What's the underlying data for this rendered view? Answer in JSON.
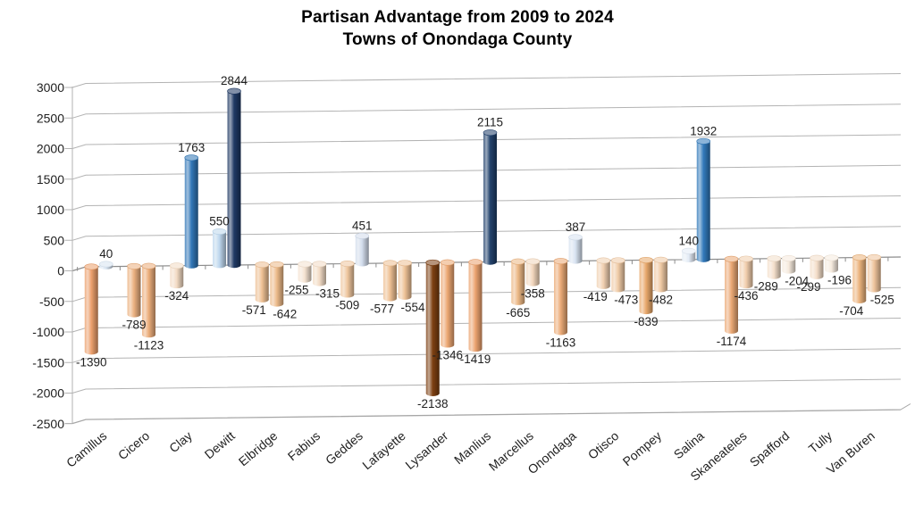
{
  "title": {
    "line1": "Partisan Advantage from 2009 to 2024",
    "line2": "Towns of Onondaga County"
  },
  "chart_data": {
    "type": "bar",
    "style": "3d-cylinder",
    "title": "Partisan Advantage from 2009 to 2024 — Towns of Onondaga County",
    "xlabel": "",
    "ylabel": "",
    "ylim": [
      -2500,
      3000
    ],
    "ytick_step": 500,
    "ytick_labels": [
      "3000",
      "2500",
      "2000",
      "1500",
      "1000",
      "500",
      "0",
      "-500",
      "-1000",
      "-1500",
      "-2000",
      "-2500"
    ],
    "grid": true,
    "legend": false,
    "data_labels": true,
    "categories": [
      "Camillus",
      "Cicero",
      "Clay",
      "Dewitt",
      "Elbridge",
      "Fabius",
      "Geddes",
      "Lafayette",
      "Lysander",
      "Manlius",
      "Marcellus",
      "Onondaga",
      "Otisco",
      "Pompey",
      "Salina",
      "Skaneateles",
      "Spafford",
      "Tully",
      "Van Buren"
    ],
    "series": [
      {
        "values": [
          -1390,
          -789,
          -324,
          550,
          -571,
          -255,
          -509,
          -577,
          -2138,
          -1419,
          -665,
          -1163,
          -419,
          -839,
          140,
          -1174,
          -289,
          -299,
          -704
        ],
        "colors": [
          "#EC9F6B",
          "#EBAF7E",
          "#F3DBC3",
          "#BDD7EE",
          "#EEBF92",
          "#F5E3D1",
          "#EFC69E",
          "#EEBF91",
          "#7C3E0F",
          "#ECA26E",
          "#ECB783",
          "#EBA974",
          "#F1D0B0",
          "#E9A869",
          "#E3EBF6",
          "#EBA873",
          "#F4DFCA",
          "#F4DEC8",
          "#EBB37C"
        ]
      },
      {
        "values": [
          40,
          -1123,
          1763,
          2844,
          -642,
          -315,
          451,
          -554,
          -1346,
          2115,
          -358,
          387,
          -473,
          -482,
          1932,
          -436,
          -204,
          -196,
          -525
        ],
        "colors": [
          "#D8E5F2",
          "#EBAC79",
          "#2E75B6",
          "#1C3661",
          "#ECB987",
          "#F3DCC5",
          "#D2DCEC",
          "#EEC195",
          "#ECA670",
          "#20406B",
          "#F2D6BB",
          "#D8E3F1",
          "#F0CAA5",
          "#F0C9A3",
          "#2F78BA",
          "#F1CEAC",
          "#F6EADD",
          "#F6EBDF",
          "#EFC49B"
        ]
      }
    ]
  },
  "colors": {
    "grid": "#B3B3B3",
    "zero_line": "#8C8C8C",
    "axis_line": "#B3B3B3",
    "floor_line": "#A6A6A6",
    "text": "#1F1F1F"
  }
}
